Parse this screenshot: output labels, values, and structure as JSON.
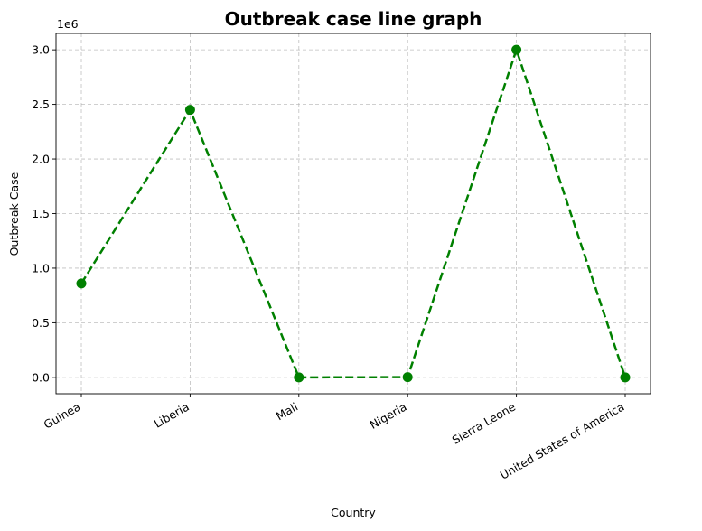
{
  "chart_data": {
    "type": "line",
    "title": "Outbreak case line graph",
    "xlabel": "Country",
    "ylabel": "Outbreak Case",
    "y_offset_label": "1e6",
    "categories": [
      "Guinea",
      "Liberia",
      "Mali",
      "Nigeria",
      "Sierra Leone",
      "United States of America"
    ],
    "series": [
      {
        "values": [
          0.86,
          2.45,
          0.0,
          0.002,
          3.0,
          0.0
        ]
      }
    ],
    "ylim": [
      -0.15,
      3.15
    ],
    "yticks": [
      0.0,
      0.5,
      1.0,
      1.5,
      2.0,
      2.5,
      3.0
    ],
    "ytick_labels": [
      "0.0",
      "0.5",
      "1.0",
      "1.5",
      "2.0",
      "2.5",
      "3.0"
    ],
    "grid": true,
    "line_style": "dashed",
    "marker": "circle",
    "color": "#008000"
  }
}
